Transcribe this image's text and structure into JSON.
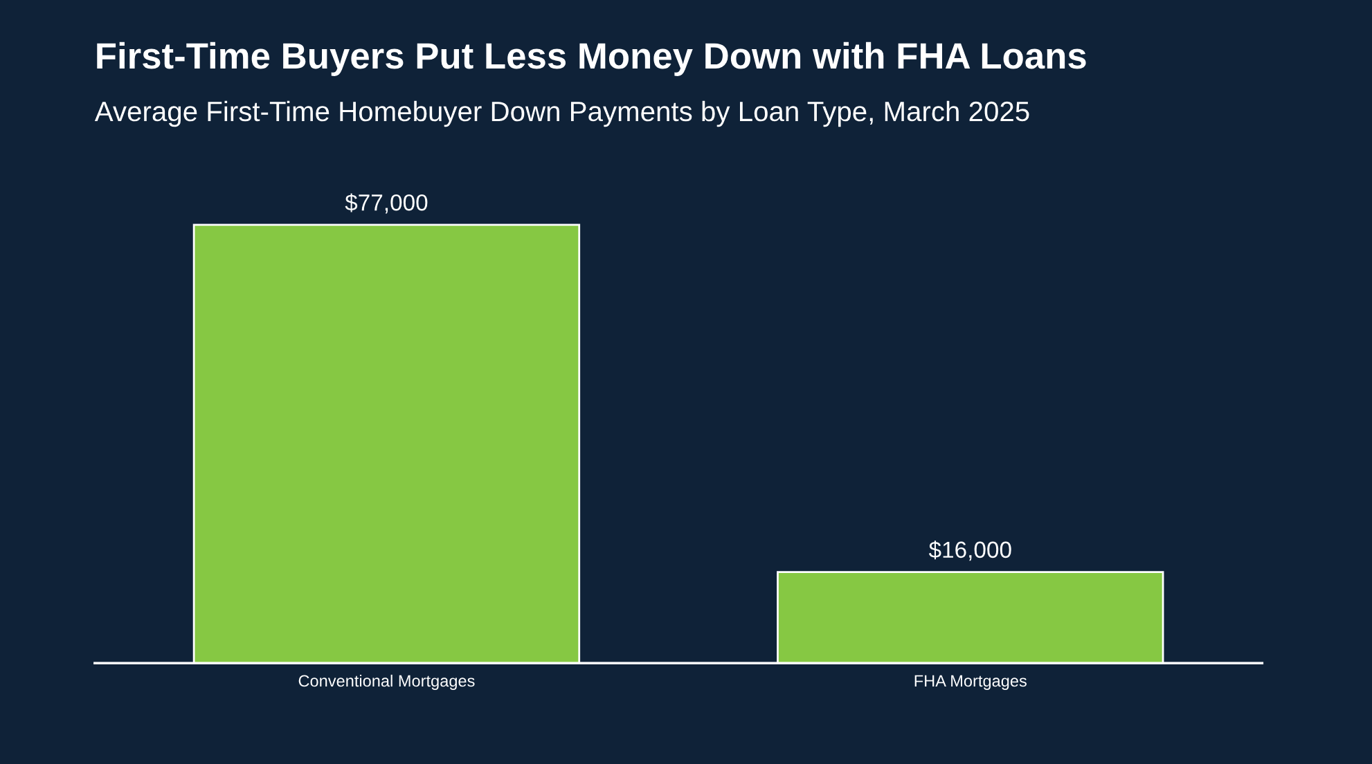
{
  "chart_data": {
    "type": "bar",
    "title": "First-Time Buyers Put Less Money Down with FHA Loans",
    "subtitle": "Average First-Time Homebuyer Down Payments by Loan Type, March 2025",
    "categories": [
      "Conventional Mortgages",
      "FHA Mortgages"
    ],
    "values": [
      77000,
      16000
    ],
    "value_labels": [
      "$77,000",
      "$16,000"
    ],
    "color": "#86c843",
    "grid": false,
    "legend": false
  }
}
